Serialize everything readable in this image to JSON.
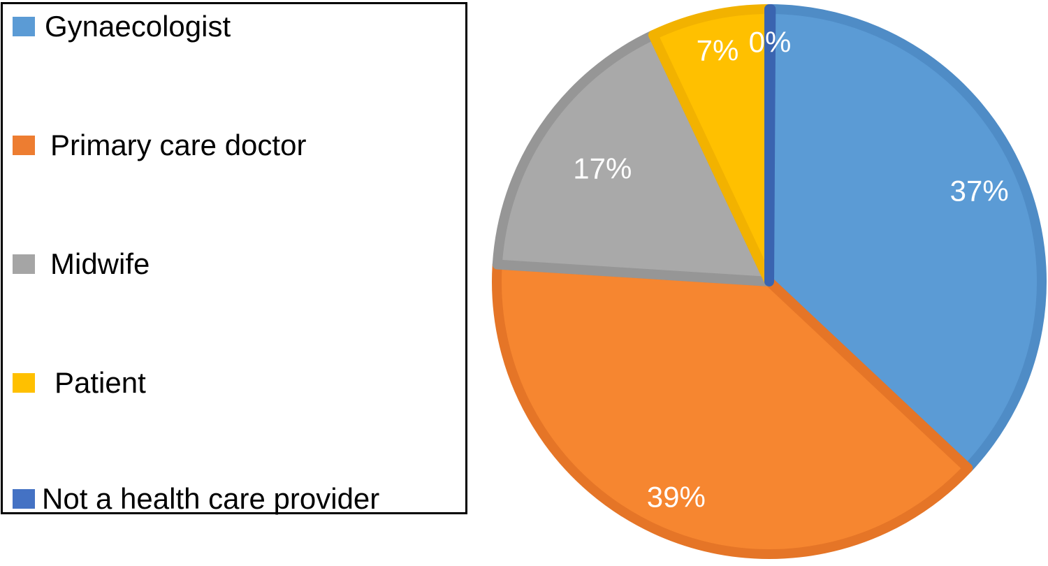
{
  "chart_data": {
    "type": "pie",
    "categories": [
      "Gynaecologist",
      "Primary care doctor",
      "Midwife",
      "Patient",
      "Not a health care provider"
    ],
    "values": [
      37,
      39,
      17,
      7,
      0
    ],
    "labels": [
      "37%",
      "39%",
      "17%",
      "7%",
      "0%"
    ],
    "colors": [
      "#5b9bd5",
      "#f68630",
      "#a9a9a9",
      "#ffc000",
      "#4472c4"
    ],
    "border_colors": [
      "#4f8cc6",
      "#e57527",
      "#969696",
      "#f2b200",
      "#3a64b0"
    ],
    "legend_position": "left"
  }
}
